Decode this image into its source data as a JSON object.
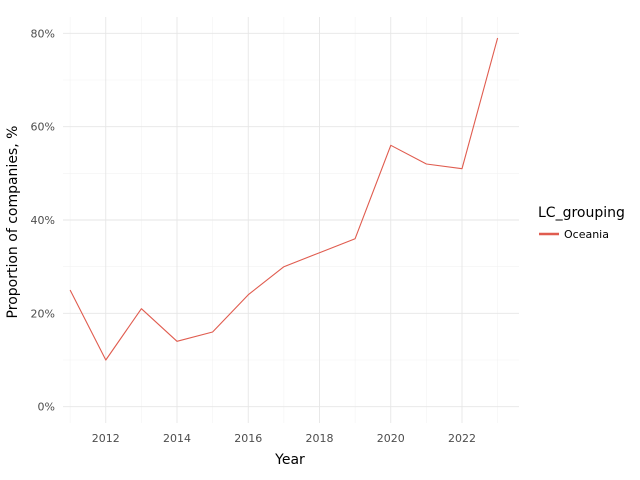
{
  "chart_data": {
    "type": "line",
    "xlabel": "Year",
    "ylabel": "Proportion of companies, %",
    "x": [
      2011,
      2012,
      2013,
      2014,
      2015,
      2016,
      2017,
      2018,
      2019,
      2020,
      2021,
      2022,
      2023
    ],
    "series": [
      {
        "name": "Oceania",
        "color": "#e05c4f",
        "values": [
          25,
          10,
          21,
          14,
          16,
          24,
          30,
          33,
          36,
          56,
          52,
          51,
          79
        ]
      }
    ],
    "xlim": [
      2010.8,
      2023.6
    ],
    "ylim": [
      -3.5,
      83.5
    ],
    "xticks": [
      2012,
      2014,
      2016,
      2018,
      2020,
      2022
    ],
    "yticks": [
      0,
      20,
      40,
      60,
      80
    ],
    "ytick_labels": [
      "0%",
      "20%",
      "40%",
      "60%",
      "80%"
    ],
    "grid": true,
    "legend": {
      "title": "LC_grouping",
      "placement": "right"
    }
  }
}
